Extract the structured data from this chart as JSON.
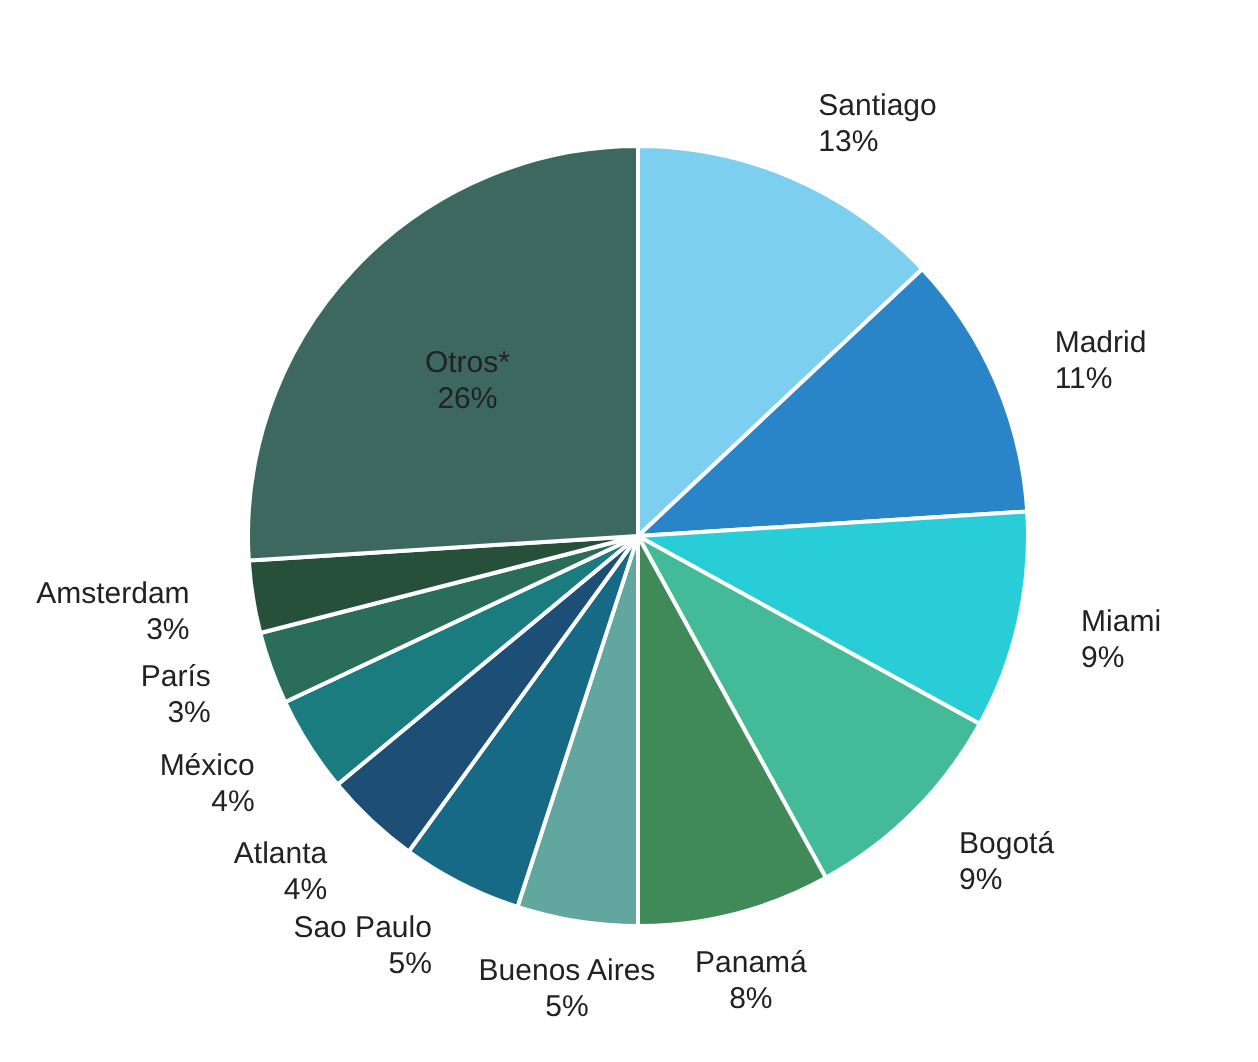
{
  "chart_data": {
    "type": "pie",
    "categories": [
      "Santiago",
      "Madrid",
      "Miami",
      "Bogotá",
      "Panamá",
      "Buenos Aires",
      "Sao Paulo",
      "Atlanta",
      "México",
      "París",
      "Amsterdam",
      "Otros*"
    ],
    "values": [
      13,
      11,
      9,
      9,
      8,
      5,
      5,
      4,
      4,
      3,
      3,
      26
    ],
    "value_labels": [
      "13%",
      "11%",
      "9%",
      "9%",
      "8%",
      "5%",
      "5%",
      "4%",
      "4%",
      "3%",
      "3%",
      "26%"
    ],
    "colors": [
      "#7ccfef",
      "#2a84c8",
      "#29cdd8",
      "#44bb98",
      "#3f8a58",
      "#62a6a0",
      "#166a86",
      "#1d4e75",
      "#1a7c7e",
      "#2a6e5a",
      "#27503a",
      "#3d6860"
    ],
    "legend": false
  }
}
